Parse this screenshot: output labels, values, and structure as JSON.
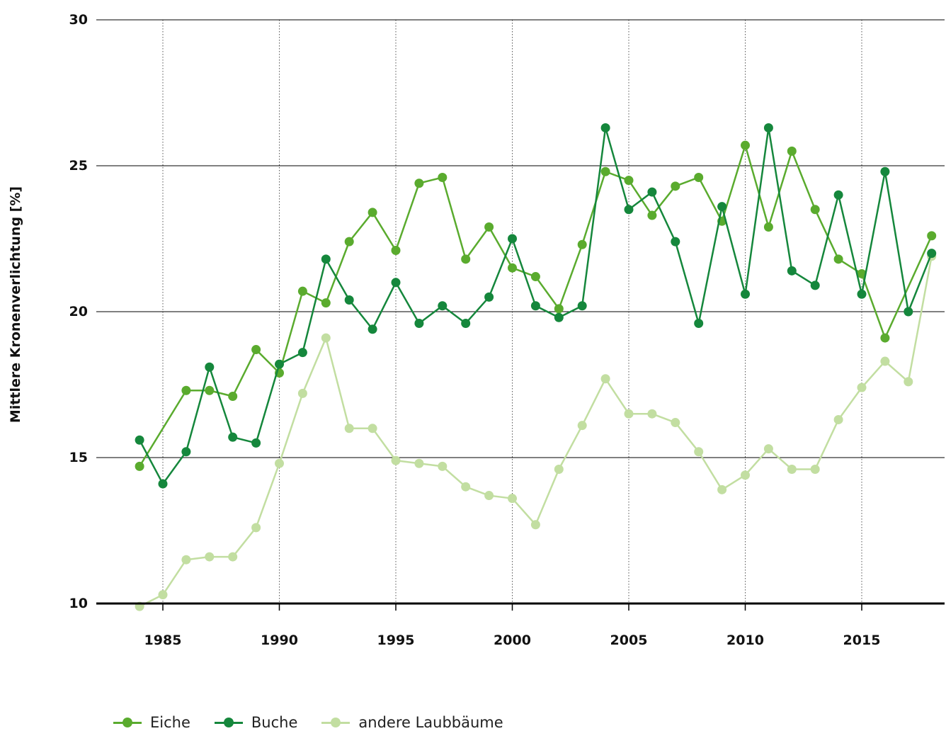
{
  "chart_data": {
    "type": "line",
    "ylabel": "Mittlere Kronenverlichtung [%]",
    "ylim": [
      10,
      30
    ],
    "yticks": [
      10,
      15,
      20,
      25,
      30
    ],
    "xlim": [
      1984,
      2018.6
    ],
    "xticks": [
      1985,
      1990,
      1995,
      2000,
      2005,
      2010,
      2015
    ],
    "grid": {
      "horizontal": true,
      "vertical_dotted": true
    },
    "legend_position": "bottom-left",
    "series": [
      {
        "name": "Eiche",
        "color": "#5aab2e",
        "x": [
          1984,
          1986,
          1987,
          1988,
          1989,
          1990,
          1991,
          1992,
          1993,
          1994,
          1995,
          1996,
          1997,
          1998,
          1999,
          2000,
          2001,
          2002,
          2003,
          2004,
          2005,
          2006,
          2007,
          2008,
          2009,
          2010,
          2011,
          2012,
          2013,
          2014,
          2015,
          2016,
          2018
        ],
        "values": [
          14.7,
          17.3,
          17.3,
          17.1,
          18.7,
          17.9,
          20.7,
          20.3,
          22.4,
          23.4,
          22.1,
          24.4,
          24.6,
          21.8,
          22.9,
          21.5,
          21.2,
          20.1,
          22.3,
          24.8,
          24.5,
          23.3,
          24.3,
          24.6,
          23.1,
          25.7,
          22.9,
          25.5,
          23.5,
          21.8,
          21.3,
          19.1,
          22.6
        ]
      },
      {
        "name": "Buche",
        "color": "#15873c",
        "x": [
          1984,
          1985,
          1986,
          1987,
          1988,
          1989,
          1990,
          1991,
          1992,
          1993,
          1994,
          1995,
          1996,
          1997,
          1998,
          1999,
          2000,
          2001,
          2002,
          2003,
          2004,
          2005,
          2006,
          2007,
          2008,
          2009,
          2010,
          2011,
          2012,
          2013,
          2014,
          2015,
          2016,
          2017,
          2018
        ],
        "values": [
          15.6,
          14.1,
          15.2,
          18.1,
          15.7,
          15.5,
          18.2,
          18.6,
          21.8,
          20.4,
          19.4,
          21.0,
          19.6,
          20.2,
          19.6,
          20.5,
          22.5,
          20.2,
          19.8,
          20.2,
          26.3,
          23.5,
          24.1,
          22.4,
          19.6,
          23.6,
          20.6,
          26.3,
          21.4,
          20.9,
          24.0,
          20.6,
          24.8,
          20.0,
          22.0
        ]
      },
      {
        "name": "andere Laubbäume",
        "color": "#c2dea1",
        "x": [
          1984,
          1985,
          1986,
          1987,
          1988,
          1989,
          1990,
          1991,
          1992,
          1993,
          1994,
          1995,
          1996,
          1997,
          1998,
          1999,
          2000,
          2001,
          2002,
          2003,
          2004,
          2005,
          2006,
          2007,
          2008,
          2009,
          2010,
          2011,
          2012,
          2013,
          2014,
          2015,
          2016,
          2017,
          2018
        ],
        "values": [
          9.9,
          10.3,
          11.5,
          11.6,
          11.6,
          12.6,
          14.8,
          17.2,
          19.1,
          16.0,
          16.0,
          14.9,
          14.8,
          14.7,
          14.0,
          13.7,
          13.6,
          12.7,
          14.6,
          16.1,
          17.7,
          16.5,
          16.5,
          16.2,
          15.2,
          13.9,
          14.4,
          15.3,
          14.6,
          14.6,
          16.3,
          17.4,
          18.3,
          17.6,
          21.9
        ]
      }
    ]
  }
}
